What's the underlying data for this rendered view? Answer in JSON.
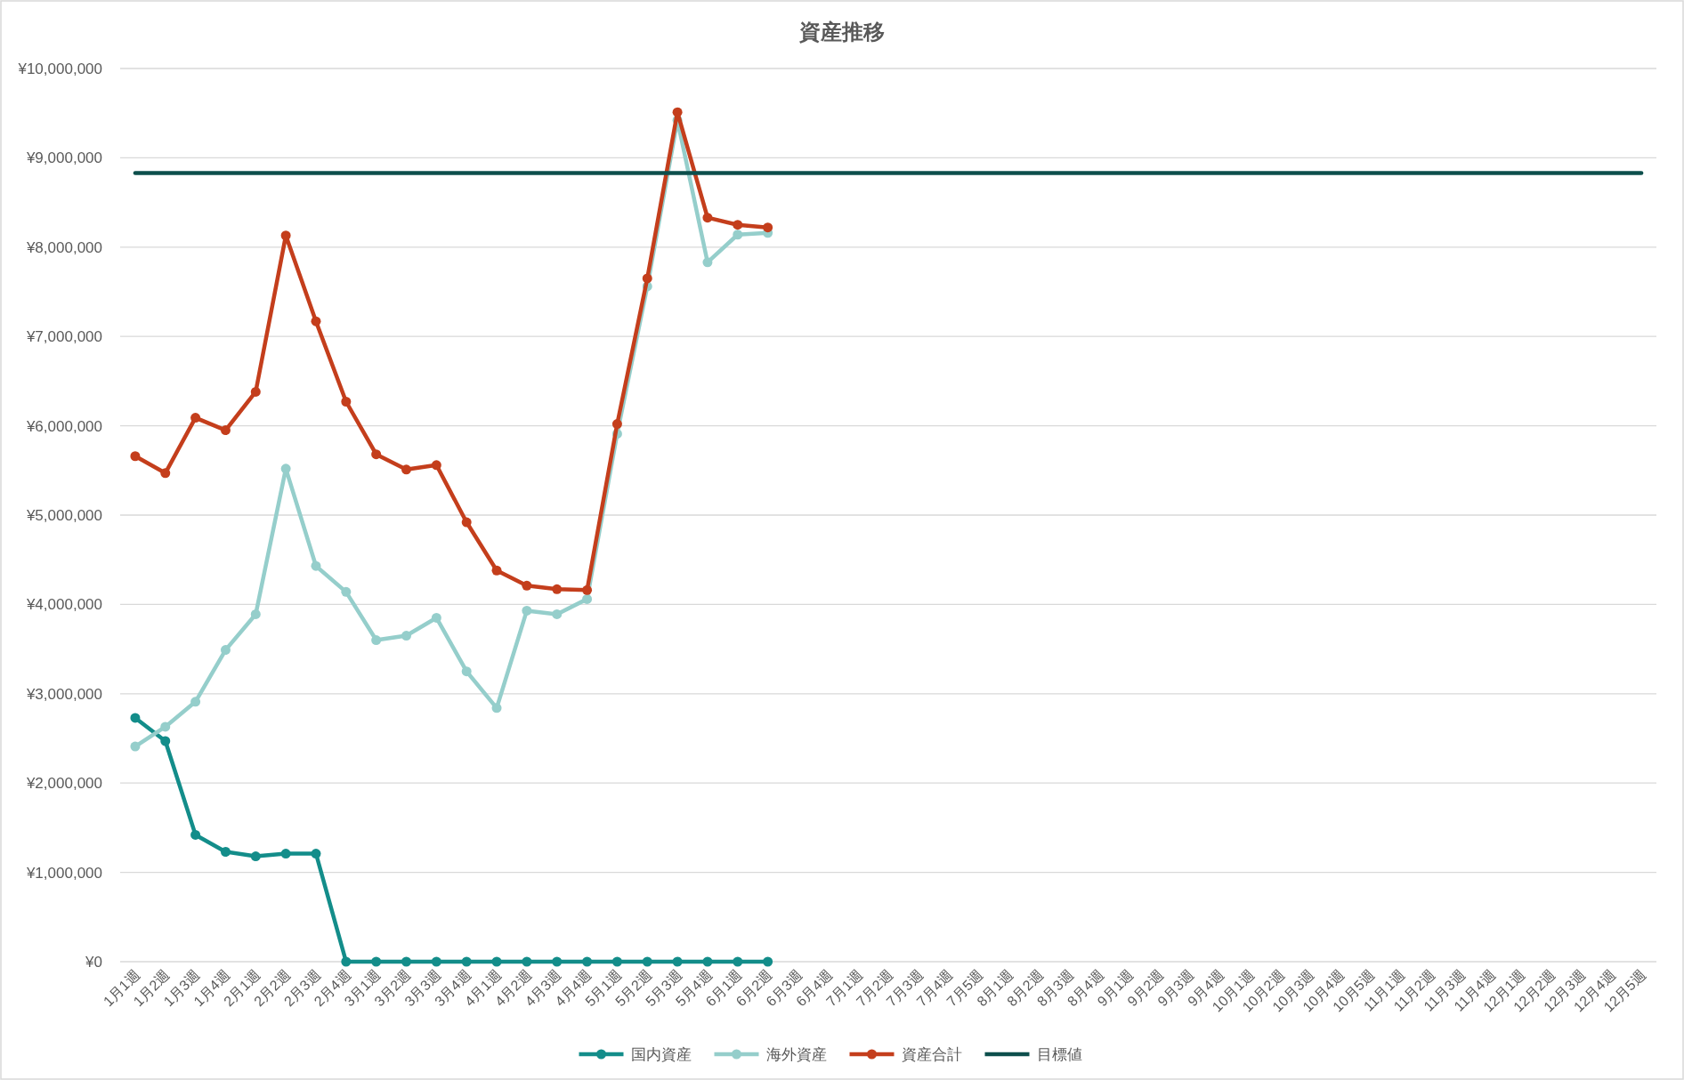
{
  "chart_data": {
    "type": "line",
    "title": "資産推移",
    "categories": [
      "1月1週",
      "1月2週",
      "1月3週",
      "1月4週",
      "2月1週",
      "2月2週",
      "2月3週",
      "2月4週",
      "3月1週",
      "3月2週",
      "3月3週",
      "3月4週",
      "4月1週",
      "4月2週",
      "4月3週",
      "4月4週",
      "5月1週",
      "5月2週",
      "5月3週",
      "5月4週",
      "6月1週",
      "6月2週",
      "6月3週",
      "6月4週",
      "7月1週",
      "7月2週",
      "7月3週",
      "7月4週",
      "7月5週",
      "8月1週",
      "8月2週",
      "8月3週",
      "8月4週",
      "9月1週",
      "9月2週",
      "9月3週",
      "9月4週",
      "10月1週",
      "10月2週",
      "10月3週",
      "10月4週",
      "10月5週",
      "11月1週",
      "11月2週",
      "11月3週",
      "11月4週",
      "12月1週",
      "12月2週",
      "12月3週",
      "12月4週",
      "12月5週"
    ],
    "series": [
      {
        "name": "国内資産",
        "color": "#138d8a",
        "values": [
          2730000,
          2470000,
          1420000,
          1230000,
          1180000,
          1210000,
          1210000,
          0,
          0,
          0,
          0,
          0,
          0,
          0,
          0,
          0,
          0,
          0,
          0,
          0,
          0,
          0,
          null,
          null,
          null,
          null,
          null,
          null,
          null,
          null,
          null,
          null,
          null,
          null,
          null,
          null,
          null,
          null,
          null,
          null,
          null,
          null,
          null,
          null,
          null,
          null,
          null,
          null,
          null,
          null,
          null
        ]
      },
      {
        "name": "海外資産",
        "color": "#95cecb",
        "values": [
          2410000,
          2630000,
          2910000,
          3490000,
          3890000,
          5520000,
          4430000,
          4140000,
          3600000,
          3650000,
          3850000,
          3250000,
          2840000,
          3930000,
          3890000,
          4060000,
          5910000,
          7560000,
          9420000,
          7830000,
          8140000,
          8160000,
          null,
          null,
          null,
          null,
          null,
          null,
          null,
          null,
          null,
          null,
          null,
          null,
          null,
          null,
          null,
          null,
          null,
          null,
          null,
          null,
          null,
          null,
          null,
          null,
          null,
          null,
          null,
          null,
          null
        ]
      },
      {
        "name": "資産合計",
        "color": "#c43e1c",
        "values": [
          5660000,
          5470000,
          6090000,
          5950000,
          6380000,
          8130000,
          7170000,
          6270000,
          5680000,
          5510000,
          5560000,
          4920000,
          4380000,
          4210000,
          4170000,
          4160000,
          6020000,
          7650000,
          9510000,
          8330000,
          8250000,
          8220000,
          null,
          null,
          null,
          null,
          null,
          null,
          null,
          null,
          null,
          null,
          null,
          null,
          null,
          null,
          null,
          null,
          null,
          null,
          null,
          null,
          null,
          null,
          null,
          null,
          null,
          null,
          null,
          null,
          null
        ]
      },
      {
        "name": "目標値",
        "color": "#0d4f4c",
        "marker": "none",
        "values": [
          8830000,
          8830000,
          8830000,
          8830000,
          8830000,
          8830000,
          8830000,
          8830000,
          8830000,
          8830000,
          8830000,
          8830000,
          8830000,
          8830000,
          8830000,
          8830000,
          8830000,
          8830000,
          8830000,
          8830000,
          8830000,
          8830000,
          8830000,
          8830000,
          8830000,
          8830000,
          8830000,
          8830000,
          8830000,
          8830000,
          8830000,
          8830000,
          8830000,
          8830000,
          8830000,
          8830000,
          8830000,
          8830000,
          8830000,
          8830000,
          8830000,
          8830000,
          8830000,
          8830000,
          8830000,
          8830000,
          8830000,
          8830000,
          8830000,
          8830000,
          8830000
        ]
      }
    ],
    "ylim": [
      0,
      10000000
    ],
    "yticks": [
      {
        "value": 0,
        "label": "¥0"
      },
      {
        "value": 1000000,
        "label": "¥1,000,000"
      },
      {
        "value": 2000000,
        "label": "¥2,000,000"
      },
      {
        "value": 3000000,
        "label": "¥3,000,000"
      },
      {
        "value": 4000000,
        "label": "¥4,000,000"
      },
      {
        "value": 5000000,
        "label": "¥5,000,000"
      },
      {
        "value": 6000000,
        "label": "¥6,000,000"
      },
      {
        "value": 7000000,
        "label": "¥7,000,000"
      },
      {
        "value": 8000000,
        "label": "¥8,000,000"
      },
      {
        "value": 9000000,
        "label": "¥9,000,000"
      },
      {
        "value": 10000000,
        "label": "¥10,000,000"
      }
    ],
    "grid": "y",
    "legend": "bottom",
    "marker": "circle",
    "line_style": "solid"
  }
}
